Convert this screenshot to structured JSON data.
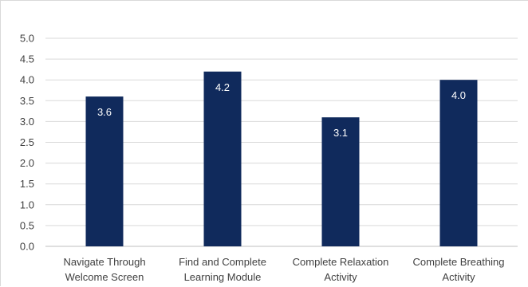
{
  "chart_data": {
    "type": "bar",
    "categories": [
      [
        "Navigate Through",
        "Welcome Screen"
      ],
      [
        "Find and Complete",
        "Learning Module"
      ],
      [
        "Complete Relaxation",
        "Activity"
      ],
      [
        "Complete Breathing",
        "Activity"
      ]
    ],
    "values": [
      3.6,
      4.2,
      3.1,
      4.0
    ],
    "data_labels": [
      "3.6",
      "4.2",
      "3.1",
      "4.0"
    ],
    "yticks": [
      "0.0",
      "0.5",
      "1.0",
      "1.5",
      "2.0",
      "2.5",
      "3.0",
      "3.5",
      "4.0",
      "4.5",
      "5.0"
    ],
    "ylim": [
      0,
      5
    ],
    "grid": true,
    "legend": "none",
    "bar_color": "#102a5c",
    "title": "",
    "xlabel": "",
    "ylabel": ""
  }
}
